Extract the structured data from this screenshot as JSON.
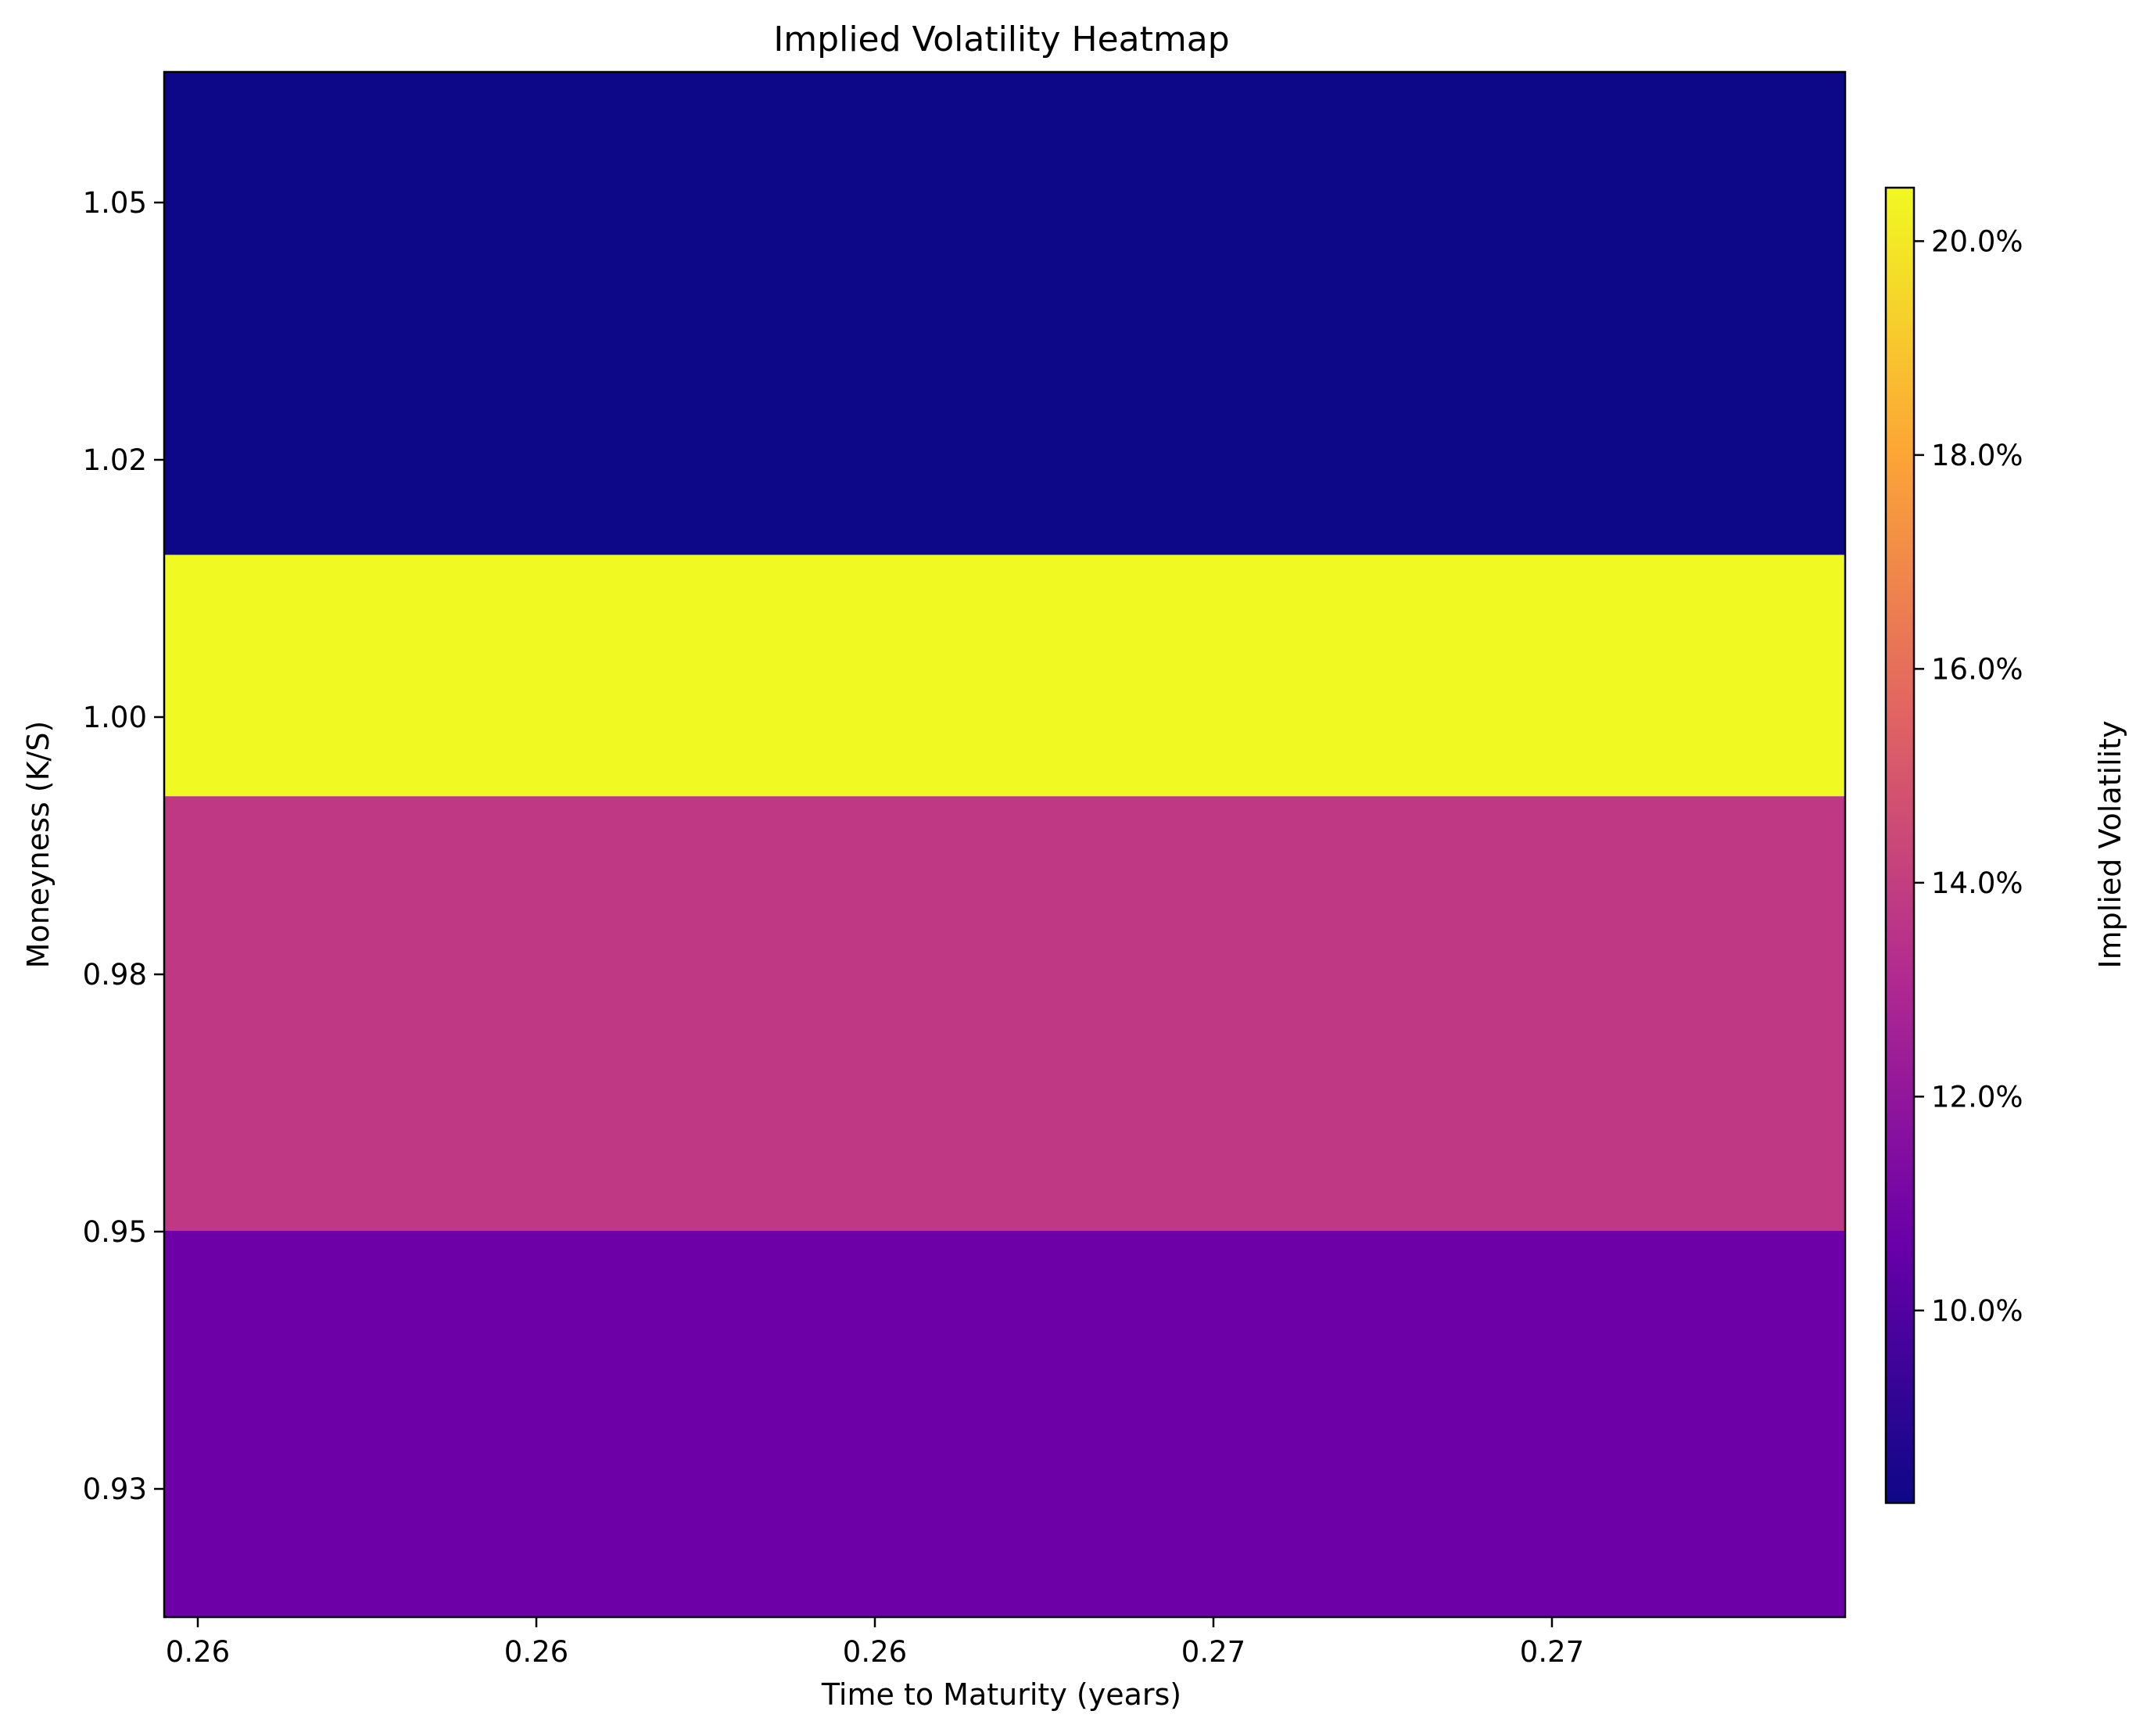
{
  "chart_data": {
    "type": "heatmap",
    "title": "Implied Volatility Heatmap",
    "xlabel": "Time to Maturity (years)",
    "ylabel": "Moneyness (K/S)",
    "x_tick_labels": [
      "0.26",
      "0.26",
      "0.26",
      "0.27",
      "0.27"
    ],
    "y_tick_labels": [
      "1.05",
      "1.02",
      "1.00",
      "0.98",
      "0.95",
      "0.93"
    ],
    "bands": [
      {
        "moneyness_from": 1.02,
        "moneyness_to": 1.07,
        "implied_volatility": 0.082,
        "color": "#0d0887"
      },
      {
        "moneyness_from": 0.995,
        "moneyness_to": 1.02,
        "implied_volatility": 0.205,
        "color": "#f0f921"
      },
      {
        "moneyness_from": 0.95,
        "moneyness_to": 0.995,
        "implied_volatility": 0.145,
        "color": "#be3884"
      },
      {
        "moneyness_from": 0.91,
        "moneyness_to": 0.95,
        "implied_volatility": 0.112,
        "color": "#6e00a8"
      }
    ],
    "colorbar": {
      "label": "Implied Volatility",
      "min": 0.082,
      "max": 0.205,
      "tick_labels": [
        "10.0%",
        "12.0%",
        "14.0%",
        "16.0%",
        "18.0%",
        "20.0%"
      ],
      "colormap": "plasma",
      "color_stops": [
        "#0d0887",
        "#6a00a8",
        "#b12a90",
        "#e16462",
        "#fca636",
        "#f0f921"
      ]
    },
    "grid": false
  }
}
